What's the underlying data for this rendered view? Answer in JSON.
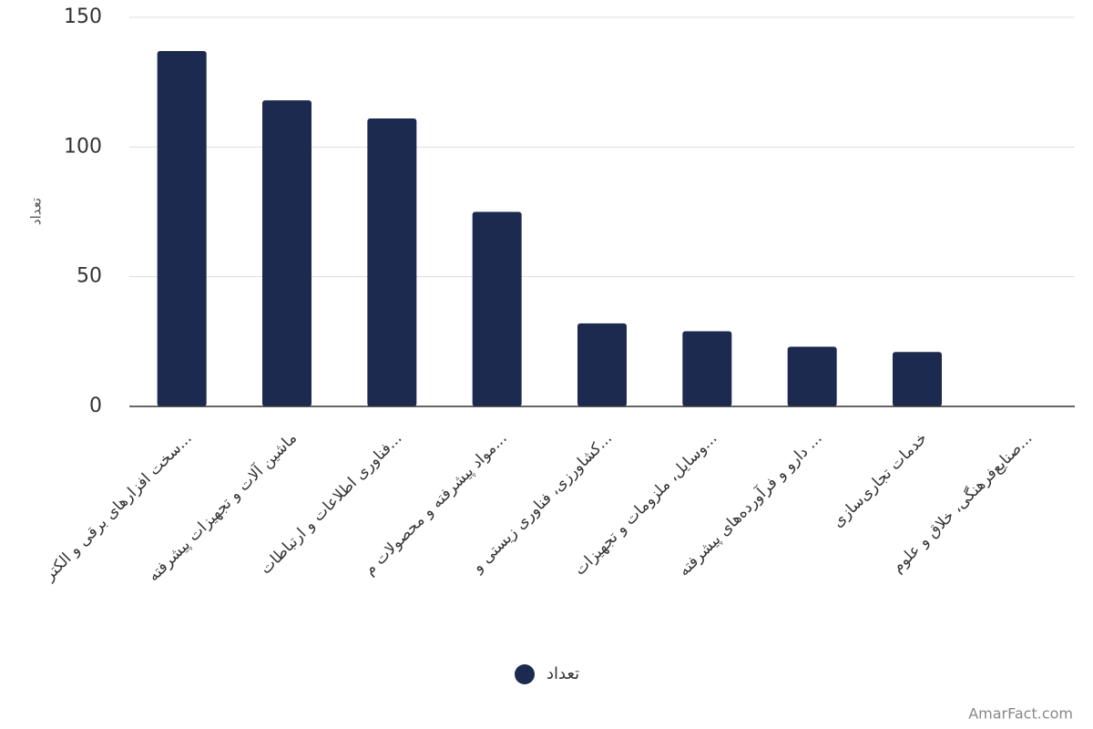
{
  "chart_data": {
    "type": "bar",
    "y_label": "تعداد",
    "categories": [
      "سخت افزارهای برقی و الکتر...",
      "ماشین آلات و تجهیزات پیشرفته",
      "فناوری اطلاعات و ارتباطات...",
      "مواد پیشرفته و محصولات م...",
      "کشاورزی، فناوری زیستی و...",
      "وسایل، ملزومات و تجهیزات...",
      "دارو و فرآورده‌های پیشرفته ...",
      "خدمات تجاری‌سازی",
      "صنایع‌فرهنگی، خلاق و علوم..."
    ],
    "series": [
      {
        "name": "تعداد",
        "color": "#1b2a4e",
        "values": [
          137,
          118,
          111,
          75,
          32,
          29,
          23,
          21,
          0
        ]
      }
    ],
    "ylim": [
      0,
      150
    ],
    "yticks": [
      0,
      50,
      100,
      150
    ],
    "grid": true,
    "legend": "bottom",
    "watermark": "AmarFact.com"
  }
}
